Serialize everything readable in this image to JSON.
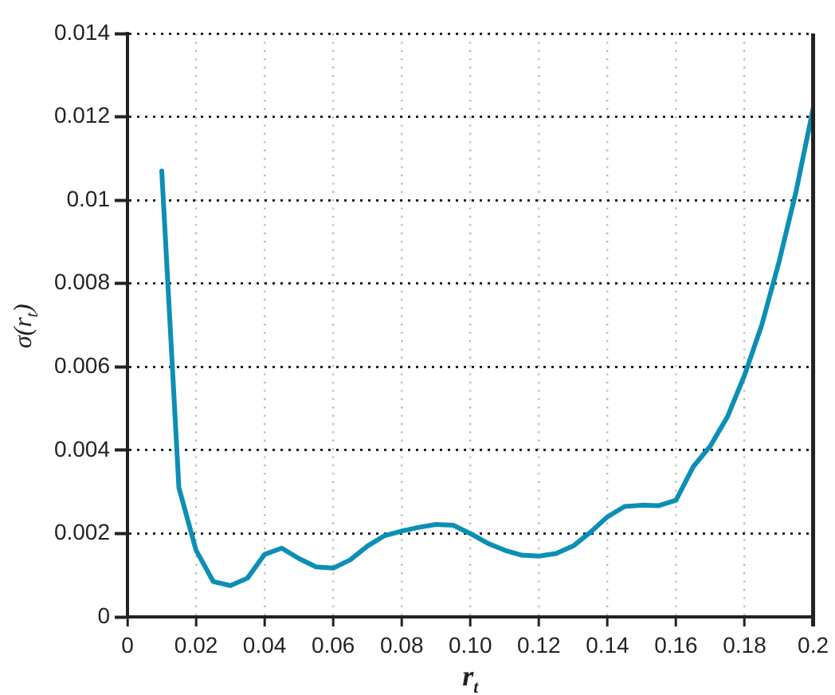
{
  "chart_data": {
    "type": "line",
    "xlabel": "r$_{t}$",
    "ylabel": "σ(r$_{t}$)",
    "x": [
      0.01,
      0.015,
      0.02,
      0.025,
      0.03,
      0.035,
      0.04,
      0.045,
      0.05,
      0.055,
      0.06,
      0.065,
      0.07,
      0.075,
      0.08,
      0.085,
      0.09,
      0.095,
      0.1,
      0.105,
      0.11,
      0.115,
      0.12,
      0.125,
      0.13,
      0.135,
      0.14,
      0.145,
      0.15,
      0.155,
      0.16,
      0.165,
      0.17,
      0.175,
      0.18,
      0.185,
      0.19,
      0.195,
      0.2
    ],
    "series": [
      {
        "color": "#0d8fb5",
        "values": [
          0.0107,
          0.0031,
          0.0016,
          0.00085,
          0.00075,
          0.00093,
          0.0015,
          0.00165,
          0.0014,
          0.0012,
          0.00117,
          0.00137,
          0.0017,
          0.00195,
          0.00206,
          0.00215,
          0.00222,
          0.0022,
          0.002,
          0.00177,
          0.0016,
          0.00148,
          0.00146,
          0.00152,
          0.0017,
          0.00203,
          0.0024,
          0.00265,
          0.00268,
          0.00267,
          0.0028,
          0.0036,
          0.0041,
          0.0048,
          0.0058,
          0.007,
          0.0085,
          0.0102,
          0.0122
        ]
      }
    ],
    "xlim": [
      0,
      0.2
    ],
    "ylim": [
      0,
      0.014
    ],
    "xticks": [
      0,
      0.02,
      0.04,
      0.06,
      0.08,
      {
        "value": 0.1,
        "label": "0.10"
      },
      0.12,
      0.14,
      0.16,
      0.18,
      0.2
    ],
    "yticks": [
      0,
      0.002,
      0.004,
      0.006,
      0.008,
      0.01,
      0.012,
      0.014
    ],
    "grid": true
  }
}
